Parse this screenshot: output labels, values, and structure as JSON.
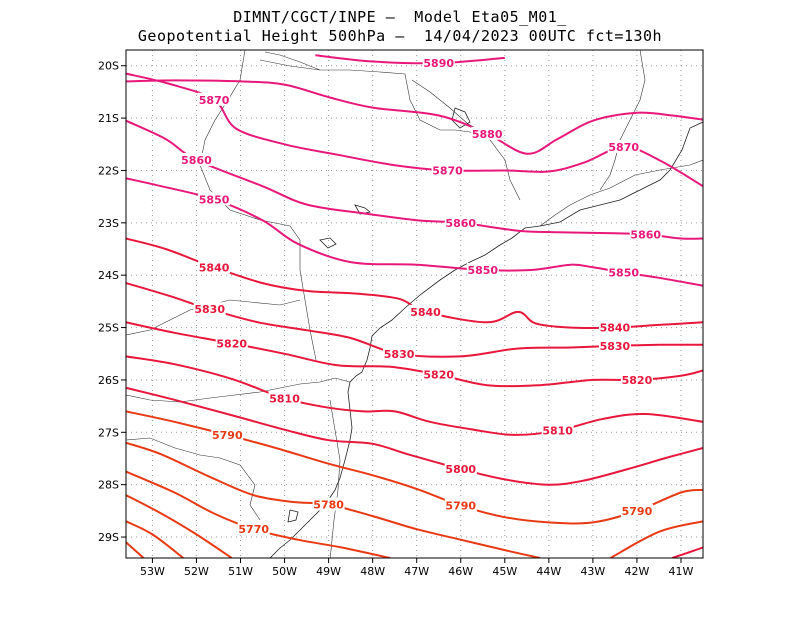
{
  "header": {
    "line1": "DIMNT/CGCT/INPE –  Model Eta05_M01_",
    "line2": "Geopotential Height 500hPa –  14/04/2023 00UTC fct=130h"
  },
  "axes": {
    "lat_labels": [
      "20S",
      "21S",
      "22S",
      "23S",
      "24S",
      "25S",
      "26S",
      "27S",
      "28S",
      "29S"
    ],
    "lon_labels": [
      "53W",
      "52W",
      "51W",
      "50W",
      "49W",
      "48W",
      "47W",
      "46W",
      "45W",
      "44W",
      "43W",
      "42W",
      "41W"
    ]
  },
  "chart_data": {
    "type": "contour",
    "variable": "Geopotential Height 500hPa",
    "lon_range": [
      -53.6,
      -40.5
    ],
    "lat_range": [
      -29.4,
      -19.7
    ],
    "gridlines": "dotted",
    "contours": [
      {
        "level": 5890,
        "labels": [
          "5890"
        ],
        "points": [
          [
            -49.3,
            -19.8
          ],
          [
            -48,
            -19.92
          ],
          [
            -46.5,
            -19.95
          ],
          [
            -45,
            -19.85
          ]
        ]
      },
      {
        "level": 5880,
        "labels": [
          "5880"
        ],
        "points": [
          [
            -53.6,
            -20.3
          ],
          [
            -52.5,
            -20.28
          ],
          [
            -51,
            -20.3
          ],
          [
            -50,
            -20.36
          ],
          [
            -49,
            -20.6
          ],
          [
            -48,
            -20.8
          ],
          [
            -46.5,
            -20.95
          ],
          [
            -45.4,
            -21.3
          ],
          [
            -44.5,
            -21.68
          ],
          [
            -43.8,
            -21.4
          ],
          [
            -43,
            -21.05
          ],
          [
            -42,
            -20.9
          ],
          [
            -41.2,
            -20.95
          ],
          [
            -40.5,
            -21.03
          ]
        ]
      },
      {
        "level": 5870,
        "labels": [
          "5870",
          "5870",
          "5870"
        ],
        "points": [
          [
            -53.6,
            -20.15
          ],
          [
            -52.6,
            -20.35
          ],
          [
            -51.6,
            -20.65
          ],
          [
            -51.1,
            -21.2
          ],
          [
            -50,
            -21.5
          ],
          [
            -48.8,
            -21.7
          ],
          [
            -47.5,
            -21.9
          ],
          [
            -46.3,
            -22.0
          ],
          [
            -45,
            -22.0
          ],
          [
            -44,
            -22.02
          ],
          [
            -43.2,
            -21.85
          ],
          [
            -42.3,
            -21.55
          ],
          [
            -41.5,
            -21.8
          ],
          [
            -40.5,
            -22.3
          ]
        ]
      },
      {
        "level": 5860,
        "labels": [
          "5860",
          "5860",
          "5860"
        ],
        "points": [
          [
            -53.6,
            -21.05
          ],
          [
            -52.7,
            -21.4
          ],
          [
            -52,
            -21.8
          ],
          [
            -50.5,
            -22.3
          ],
          [
            -49.5,
            -22.65
          ],
          [
            -48.2,
            -22.82
          ],
          [
            -47,
            -22.95
          ],
          [
            -46,
            -23.0
          ],
          [
            -44.7,
            -23.15
          ],
          [
            -43.8,
            -23.18
          ],
          [
            -42.5,
            -23.2
          ],
          [
            -41.8,
            -23.22
          ],
          [
            -41,
            -23.3
          ],
          [
            -40.5,
            -23.3
          ]
        ]
      },
      {
        "level": 5850,
        "labels": [
          "5850",
          "5850",
          "5850"
        ],
        "points": [
          [
            -53.6,
            -22.15
          ],
          [
            -52.8,
            -22.3
          ],
          [
            -51.6,
            -22.55
          ],
          [
            -50.5,
            -22.95
          ],
          [
            -49.7,
            -23.4
          ],
          [
            -48.5,
            -23.75
          ],
          [
            -47,
            -23.8
          ],
          [
            -45.5,
            -23.9
          ],
          [
            -44.4,
            -23.9
          ],
          [
            -43.5,
            -23.8
          ],
          [
            -43,
            -23.85
          ],
          [
            -42.3,
            -23.95
          ],
          [
            -41.5,
            -24.05
          ],
          [
            -40.5,
            -24.2
          ]
        ]
      },
      {
        "level": 5840,
        "labels": [
          "5840",
          "5840",
          "5840"
        ],
        "points": [
          [
            -53.6,
            -23.3
          ],
          [
            -52.7,
            -23.5
          ],
          [
            -51.6,
            -23.85
          ],
          [
            -50.5,
            -24.15
          ],
          [
            -49.5,
            -24.3
          ],
          [
            -48.4,
            -24.35
          ],
          [
            -47.4,
            -24.45
          ],
          [
            -46.8,
            -24.7
          ],
          [
            -45.4,
            -24.9
          ],
          [
            -44.7,
            -24.7
          ],
          [
            -44.3,
            -24.92
          ],
          [
            -43.5,
            -25.0
          ],
          [
            -42.5,
            -25.0
          ],
          [
            -41.5,
            -24.95
          ],
          [
            -40.5,
            -24.9
          ]
        ]
      },
      {
        "level": 5830,
        "labels": [
          "5830",
          "5830",
          "5830"
        ],
        "points": [
          [
            -53.6,
            -24.15
          ],
          [
            -52.6,
            -24.4
          ],
          [
            -51.7,
            -24.65
          ],
          [
            -50.6,
            -24.9
          ],
          [
            -49.5,
            -25.05
          ],
          [
            -48.5,
            -25.2
          ],
          [
            -47.4,
            -25.5
          ],
          [
            -46,
            -25.55
          ],
          [
            -44.7,
            -25.4
          ],
          [
            -43.5,
            -25.38
          ],
          [
            -42.5,
            -25.35
          ],
          [
            -41.5,
            -25.33
          ],
          [
            -40.5,
            -25.33
          ]
        ]
      },
      {
        "level": 5820,
        "labels": [
          "5820",
          "5820",
          "5820"
        ],
        "points": [
          [
            -53.6,
            -24.9
          ],
          [
            -52.5,
            -25.1
          ],
          [
            -51.2,
            -25.3
          ],
          [
            -50,
            -25.5
          ],
          [
            -48.8,
            -25.72
          ],
          [
            -47.6,
            -25.75
          ],
          [
            -46.5,
            -25.9
          ],
          [
            -45.4,
            -26.1
          ],
          [
            -44.2,
            -26.1
          ],
          [
            -43,
            -26.0
          ],
          [
            -42,
            -26.0
          ],
          [
            -41,
            -25.92
          ],
          [
            -40.5,
            -25.82
          ]
        ]
      },
      {
        "level": 5810,
        "labels": [
          "5810",
          "5810"
        ],
        "points": [
          [
            -53.6,
            -25.55
          ],
          [
            -52.5,
            -25.7
          ],
          [
            -51.2,
            -25.98
          ],
          [
            -50,
            -26.35
          ],
          [
            -49,
            -26.53
          ],
          [
            -48.2,
            -26.6
          ],
          [
            -47.5,
            -26.6
          ],
          [
            -46.7,
            -26.8
          ],
          [
            -45.7,
            -26.95
          ],
          [
            -44.8,
            -27.05
          ],
          [
            -43.8,
            -26.97
          ],
          [
            -42.8,
            -26.75
          ],
          [
            -41.8,
            -26.65
          ],
          [
            -40.5,
            -26.8
          ]
        ]
      },
      {
        "level": 5800,
        "labels": [
          "5800"
        ],
        "points": [
          [
            -53.6,
            -26.15
          ],
          [
            -52.5,
            -26.38
          ],
          [
            -51.3,
            -26.65
          ],
          [
            -50,
            -26.95
          ],
          [
            -49,
            -27.15
          ],
          [
            -48,
            -27.22
          ],
          [
            -47.2,
            -27.42
          ],
          [
            -46,
            -27.7
          ],
          [
            -45,
            -27.9
          ],
          [
            -44,
            -28.0
          ],
          [
            -43.2,
            -27.92
          ],
          [
            -42.2,
            -27.7
          ],
          [
            -41.3,
            -27.48
          ],
          [
            -40.5,
            -27.3
          ]
        ]
      },
      {
        "level": 5790,
        "labels": [
          "5790",
          "5790",
          "5790"
        ],
        "points": [
          [
            -53.6,
            -26.6
          ],
          [
            -52.5,
            -26.8
          ],
          [
            -51.3,
            -27.05
          ],
          [
            -50.2,
            -27.3
          ],
          [
            -49,
            -27.6
          ],
          [
            -48,
            -27.82
          ],
          [
            -47,
            -28.08
          ],
          [
            -46,
            -28.4
          ],
          [
            -45,
            -28.62
          ],
          [
            -44,
            -28.72
          ],
          [
            -43,
            -28.72
          ],
          [
            -42,
            -28.5
          ],
          [
            -41,
            -28.15
          ],
          [
            -40.5,
            -28.1
          ]
        ]
      },
      {
        "level": 5780,
        "labels": [
          "5780"
        ],
        "points": [
          [
            -53.6,
            -27.2
          ],
          [
            -52.8,
            -27.42
          ],
          [
            -51.7,
            -27.85
          ],
          [
            -50.7,
            -28.2
          ],
          [
            -49.8,
            -28.33
          ],
          [
            -49,
            -28.38
          ],
          [
            -48,
            -28.6
          ],
          [
            -47,
            -28.85
          ],
          [
            -46,
            -29.05
          ],
          [
            -45,
            -29.25
          ],
          [
            -44.2,
            -29.4
          ]
        ]
      },
      {
        "level": 5770,
        "labels": [
          "5770"
        ],
        "points": [
          [
            -53.6,
            -27.75
          ],
          [
            -52.5,
            -28.15
          ],
          [
            -51.6,
            -28.55
          ],
          [
            -50.7,
            -28.85
          ],
          [
            -49.7,
            -29.05
          ],
          [
            -48.7,
            -29.2
          ],
          [
            -47.6,
            -29.4
          ]
        ]
      },
      {
        "level": 5760,
        "labels": [],
        "points": [
          [
            -53.6,
            -28.2
          ],
          [
            -52.8,
            -28.55
          ],
          [
            -52,
            -28.95
          ],
          [
            -51.2,
            -29.4
          ]
        ]
      },
      {
        "level": 5750,
        "labels": [],
        "points": [
          [
            -53.6,
            -28.7
          ],
          [
            -53,
            -28.95
          ],
          [
            -52.3,
            -29.4
          ]
        ]
      },
      {
        "level": 5740,
        "labels": [],
        "points": [
          [
            -53.6,
            -29.1
          ],
          [
            -53.2,
            -29.4
          ]
        ]
      },
      {
        "level": 5790,
        "labels": [],
        "points": [
          [
            -42.6,
            -29.4
          ],
          [
            -41.5,
            -28.9
          ],
          [
            -40.5,
            -28.7
          ]
        ]
      },
      {
        "level": 5800,
        "labels": [],
        "points": [
          [
            -41.2,
            -29.4
          ],
          [
            -40.5,
            -29.2
          ]
        ]
      }
    ]
  },
  "colors": {
    "high": "#e8187a",
    "mid": "#e8183c",
    "low": "#e83a14",
    "coast": "#222222",
    "grid": "#9a9a9a"
  }
}
